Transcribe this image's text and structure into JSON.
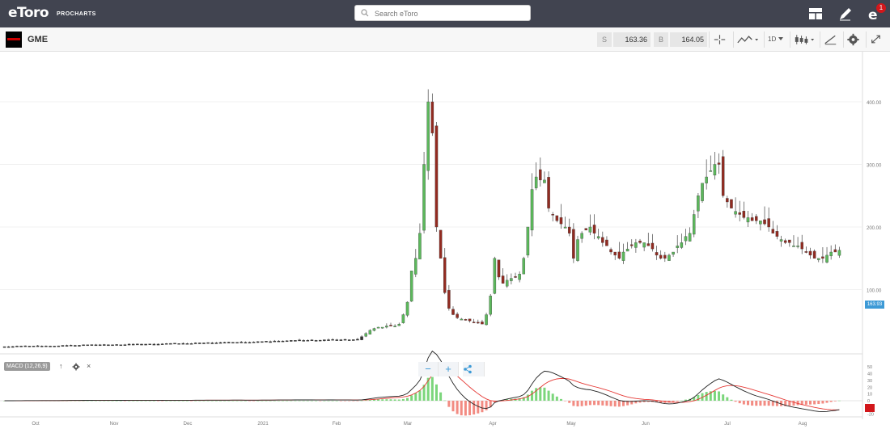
{
  "header": {
    "logo": "eToro",
    "logo_sub": "PROCHARTS",
    "search_placeholder": "Search eToro",
    "notification_count": "1"
  },
  "toolbar": {
    "ticker": "GME",
    "sell_label": "S",
    "sell_price": "163.36",
    "buy_label": "B",
    "buy_price": "164.05",
    "timeframe": "1D"
  },
  "controls": {
    "zoom_out": "−",
    "zoom_in": "+"
  },
  "indicator": {
    "macd_label": "MACD (12,26,9)",
    "up": "↑",
    "close": "×"
  },
  "colors": {
    "up": "#5cb85c",
    "down": "#922b21",
    "macd_line": "#222222",
    "signal_line": "#e53935",
    "hist_pos": "#7bd67b",
    "hist_neg": "#f28b82",
    "accent": "#3d9ad6"
  },
  "chart_data": {
    "type": "candlestick",
    "x_labels": [
      "Oct",
      "Nov",
      "Dec",
      "2021",
      "Feb",
      "Mar",
      "Apr",
      "May",
      "Jun",
      "Jul",
      "Aug"
    ],
    "y_ticks": [
      "400.00",
      "300.00",
      "200.00",
      "100.00"
    ],
    "y_tick_values": [
      400,
      300,
      200,
      100
    ],
    "ylim": [
      0,
      480
    ],
    "last_price": "163.93",
    "series_close": [
      9,
      9,
      9,
      10,
      10,
      10,
      10,
      10,
      10,
      10,
      10,
      10,
      10,
      10,
      11,
      11,
      11,
      11,
      11,
      12,
      12,
      12,
      12,
      12,
      12,
      12,
      12,
      12,
      12,
      12,
      13,
      13,
      13,
      13,
      13,
      13,
      13,
      13,
      13,
      14,
      14,
      14,
      14,
      14,
      14,
      14,
      15,
      15,
      15,
      15,
      15,
      15,
      15,
      16,
      16,
      16,
      16,
      16,
      16,
      16,
      16,
      17,
      17,
      17,
      17,
      18,
      18,
      18,
      18,
      19,
      19,
      19,
      19,
      19,
      19,
      19,
      19,
      20,
      20,
      20,
      20,
      20,
      20,
      20,
      20,
      20,
      25,
      30,
      35,
      38,
      40,
      40,
      42,
      43,
      42,
      45,
      60,
      80,
      130,
      150,
      190,
      300,
      400,
      350,
      200,
      150,
      95,
      70,
      60,
      55,
      53,
      52,
      50,
      48,
      47,
      45,
      60,
      90,
      150,
      120,
      110,
      115,
      118,
      120,
      125,
      150,
      200,
      260,
      280,
      275,
      275,
      230,
      220,
      210,
      205,
      200,
      190,
      150,
      180,
      190,
      195,
      200,
      190,
      185,
      175,
      170,
      160,
      155,
      150,
      160,
      165,
      170,
      175,
      175,
      175,
      170,
      165,
      155,
      150,
      150,
      155,
      160,
      170,
      175,
      185,
      190,
      220,
      250,
      270,
      280,
      290,
      300,
      300,
      250,
      240,
      230,
      225,
      220,
      215,
      215,
      210,
      210,
      210,
      205,
      200,
      190,
      185,
      180,
      175,
      175,
      170,
      170,
      165,
      160,
      155,
      150,
      150,
      150,
      155,
      160,
      160,
      163
    ],
    "macd_axis": [
      "50",
      "40",
      "30",
      "20",
      "10",
      "0",
      "-10",
      "-20"
    ]
  }
}
